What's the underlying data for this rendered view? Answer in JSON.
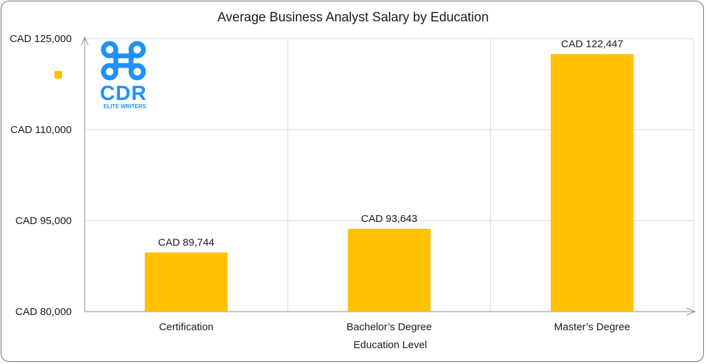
{
  "chart_data": {
    "type": "bar",
    "title": "Average Business Analyst Salary by Education",
    "xlabel": "Education Level",
    "ylabel": "",
    "categories": [
      "Certification",
      "Bachelor’s Degree",
      "Master’s Degree"
    ],
    "values": [
      89744,
      93643,
      122447
    ],
    "value_labels": [
      "CAD 89,744",
      "CAD 93,643",
      "CAD 122,447"
    ],
    "ylim": [
      80000,
      125000
    ],
    "yticks": [
      80000,
      95000,
      110000,
      125000
    ],
    "ytick_labels": [
      "CAD 80,000",
      "CAD 95,000",
      "CAD 110,000",
      "CAD 125,000"
    ],
    "bar_color": "#FFC000",
    "grid": true,
    "legend": "left"
  },
  "logo": {
    "letters": "CDR",
    "tagline": "ELITE WRITERS",
    "color": "#1E90FF"
  }
}
